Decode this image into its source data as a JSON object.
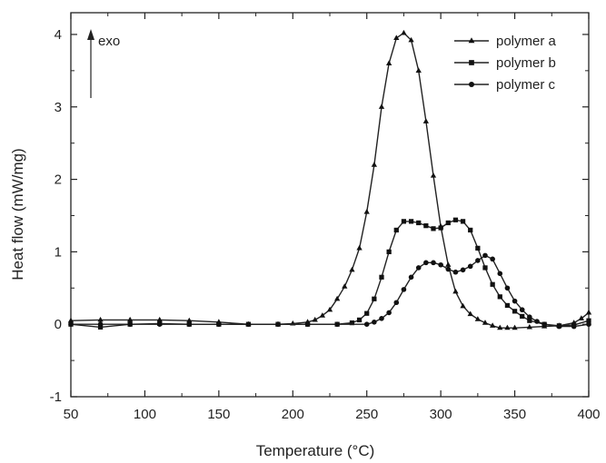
{
  "chart_data": {
    "type": "line",
    "xlabel": "Temperature (°C)",
    "ylabel": "Heat flow (mW/mg)",
    "xlim": [
      50,
      400
    ],
    "ylim": [
      -1,
      4.3
    ],
    "x_ticks": [
      50,
      100,
      150,
      200,
      250,
      300,
      350,
      400
    ],
    "y_ticks": [
      -1,
      0,
      1,
      2,
      3,
      4
    ],
    "grid": false,
    "legend_position": "top-right",
    "annotation": {
      "text": "exo",
      "arrow_direction": "up"
    },
    "series": [
      {
        "name": "polymer a",
        "marker": "triangle",
        "x": [
          50,
          70,
          90,
          110,
          130,
          150,
          170,
          190,
          200,
          210,
          215,
          220,
          225,
          230,
          235,
          240,
          245,
          250,
          255,
          260,
          265,
          270,
          275,
          280,
          285,
          290,
          295,
          300,
          305,
          310,
          315,
          320,
          325,
          330,
          335,
          340,
          345,
          350,
          360,
          370,
          380,
          390,
          395,
          400
        ],
        "y": [
          0.05,
          0.06,
          0.06,
          0.06,
          0.05,
          0.03,
          0.0,
          0.0,
          0.01,
          0.03,
          0.06,
          0.12,
          0.2,
          0.35,
          0.52,
          0.75,
          1.05,
          1.55,
          2.2,
          3.0,
          3.6,
          3.95,
          4.02,
          3.92,
          3.5,
          2.8,
          2.05,
          1.35,
          0.82,
          0.45,
          0.25,
          0.14,
          0.07,
          0.02,
          -0.02,
          -0.05,
          -0.05,
          -0.05,
          -0.04,
          -0.03,
          -0.02,
          0.02,
          0.08,
          0.16
        ]
      },
      {
        "name": "polymer b",
        "marker": "square",
        "x": [
          50,
          70,
          90,
          110,
          130,
          150,
          170,
          190,
          210,
          230,
          240,
          245,
          250,
          255,
          260,
          265,
          270,
          275,
          280,
          285,
          290,
          295,
          300,
          305,
          310,
          315,
          320,
          325,
          330,
          335,
          340,
          345,
          350,
          355,
          360,
          370,
          380,
          390,
          400
        ],
        "y": [
          0.0,
          -0.04,
          0.0,
          0.01,
          0.0,
          0.0,
          0.0,
          0.0,
          0.0,
          0.0,
          0.02,
          0.06,
          0.15,
          0.35,
          0.65,
          1.0,
          1.3,
          1.42,
          1.42,
          1.4,
          1.36,
          1.32,
          1.33,
          1.4,
          1.44,
          1.42,
          1.3,
          1.05,
          0.78,
          0.55,
          0.38,
          0.26,
          0.18,
          0.11,
          0.05,
          0.0,
          -0.02,
          -0.01,
          0.05
        ]
      },
      {
        "name": "polymer c",
        "marker": "circle",
        "x": [
          50,
          70,
          90,
          110,
          130,
          150,
          170,
          190,
          210,
          230,
          250,
          255,
          260,
          265,
          270,
          275,
          280,
          285,
          290,
          295,
          300,
          305,
          310,
          315,
          320,
          325,
          330,
          335,
          340,
          345,
          350,
          355,
          360,
          365,
          370,
          380,
          390,
          400
        ],
        "y": [
          0.0,
          0.0,
          0.0,
          0.0,
          0.0,
          0.0,
          0.0,
          0.0,
          0.0,
          0.0,
          0.0,
          0.03,
          0.08,
          0.16,
          0.3,
          0.48,
          0.65,
          0.78,
          0.85,
          0.85,
          0.82,
          0.76,
          0.72,
          0.75,
          0.8,
          0.88,
          0.95,
          0.9,
          0.7,
          0.5,
          0.32,
          0.2,
          0.1,
          0.04,
          0.0,
          -0.03,
          -0.03,
          0.0
        ]
      }
    ]
  }
}
